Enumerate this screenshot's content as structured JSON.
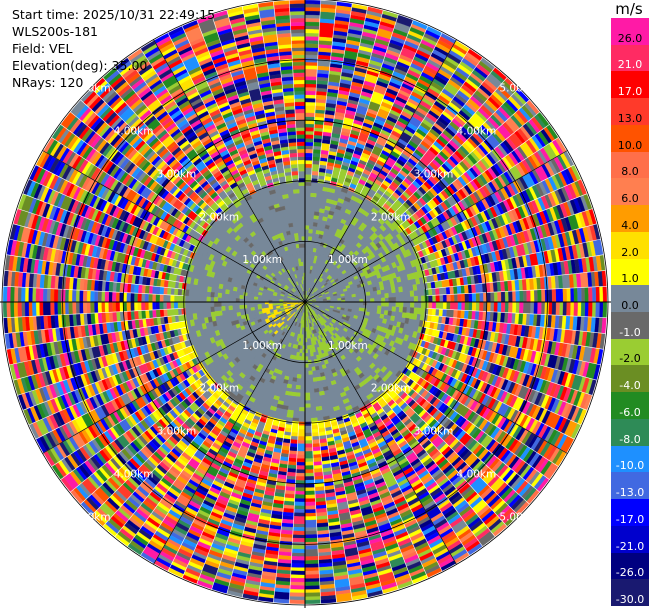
{
  "info": {
    "start_time": "Start time: 2025/10/31 22:49:15",
    "station": "WLS200s-181",
    "field": "Field: VEL",
    "elevation": "Elevation(deg): 35.00",
    "nrays": "NRays: 120"
  },
  "colorbar": {
    "unit": "m/s",
    "levels": [
      {
        "label": "26.0",
        "color": "#ff1aa6"
      },
      {
        "label": "21.0",
        "color": "#ff2b63"
      },
      {
        "label": "17.0",
        "color": "#ff0000"
      },
      {
        "label": "13.0",
        "color": "#ff3a2a"
      },
      {
        "label": "10.0",
        "color": "#ff5300"
      },
      {
        "label": "8.0",
        "color": "#ff6f4a"
      },
      {
        "label": "6.0",
        "color": "#ff7f50"
      },
      {
        "label": "4.0",
        "color": "#ff9c00"
      },
      {
        "label": "2.0",
        "color": "#ffe000"
      },
      {
        "label": "1.0",
        "color": "#ffff00"
      },
      {
        "label": "0.0",
        "color": "#778899"
      },
      {
        "label": "-1.0",
        "color": "#696969"
      },
      {
        "label": "-2.0",
        "color": "#9acd32"
      },
      {
        "label": "-4.0",
        "color": "#6b8e23"
      },
      {
        "label": "-6.0",
        "color": "#228b22"
      },
      {
        "label": "-8.0",
        "color": "#2e8b57"
      },
      {
        "label": "-10.0",
        "color": "#1e90ff"
      },
      {
        "label": "-13.0",
        "color": "#4169e1"
      },
      {
        "label": "-17.0",
        "color": "#0000ff"
      },
      {
        "label": "-21.0",
        "color": "#0000cd"
      },
      {
        "label": "-26.0",
        "color": "#000080"
      },
      {
        "label": "-30.0",
        "color": "#191970"
      }
    ]
  },
  "range_rings": [
    {
      "label": "1.00km",
      "range_km": 1.0
    },
    {
      "label": "2.00km",
      "range_km": 2.0
    },
    {
      "label": "3.00km",
      "range_km": 3.0
    },
    {
      "label": "4.00km",
      "range_km": 4.0
    },
    {
      "label": "5.00km",
      "range_km": 5.0
    }
  ],
  "ppi": {
    "max_range_km": 5.0,
    "spoke_count": 12,
    "inner_region_km": 2.0,
    "noise_start_km": 2.3
  }
}
